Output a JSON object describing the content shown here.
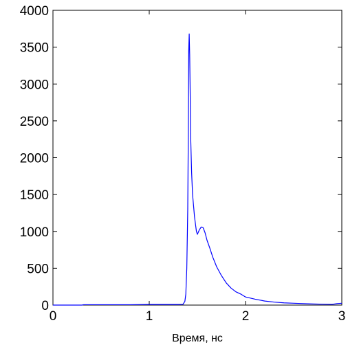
{
  "chart_data": {
    "type": "line",
    "title": "",
    "xlabel": "Время, нс",
    "ylabel": "",
    "xlim": [
      0,
      3
    ],
    "ylim": [
      0,
      4000
    ],
    "xticks": [
      0,
      1,
      2,
      3
    ],
    "yticks": [
      0,
      500,
      1000,
      1500,
      2000,
      2500,
      3000,
      3500,
      4000
    ],
    "xtick_labels": [
      "0",
      "1",
      "2",
      "3"
    ],
    "ytick_labels": [
      "0",
      "500",
      "1000",
      "1500",
      "2000",
      "2500",
      "3000",
      "3500",
      "4000"
    ],
    "grid": false,
    "series": [
      {
        "color": "#0000ff",
        "x": [
          0,
          0.3,
          0.32,
          0.6,
          0.8,
          1.0,
          1.2,
          1.3,
          1.35,
          1.37,
          1.38,
          1.39,
          1.4,
          1.405,
          1.41,
          1.415,
          1.42,
          1.425,
          1.43,
          1.44,
          1.45,
          1.46,
          1.47,
          1.48,
          1.49,
          1.5,
          1.52,
          1.54,
          1.56,
          1.58,
          1.6,
          1.63,
          1.66,
          1.7,
          1.75,
          1.8,
          1.85,
          1.9,
          1.95,
          2.0,
          2.1,
          2.2,
          2.3,
          2.4,
          2.5,
          2.6,
          2.7,
          2.8,
          2.9,
          2.95,
          3.0
        ],
        "y": [
          0,
          0,
          5,
          5,
          5,
          8,
          8,
          8,
          10,
          50,
          150,
          500,
          1300,
          2200,
          3450,
          3680,
          3400,
          2900,
          2300,
          1800,
          1500,
          1350,
          1200,
          1100,
          1000,
          960,
          1020,
          1060,
          1050,
          980,
          880,
          770,
          650,
          520,
          400,
          300,
          230,
          180,
          150,
          110,
          80,
          55,
          40,
          30,
          25,
          20,
          15,
          12,
          10,
          20,
          25
        ]
      }
    ]
  }
}
